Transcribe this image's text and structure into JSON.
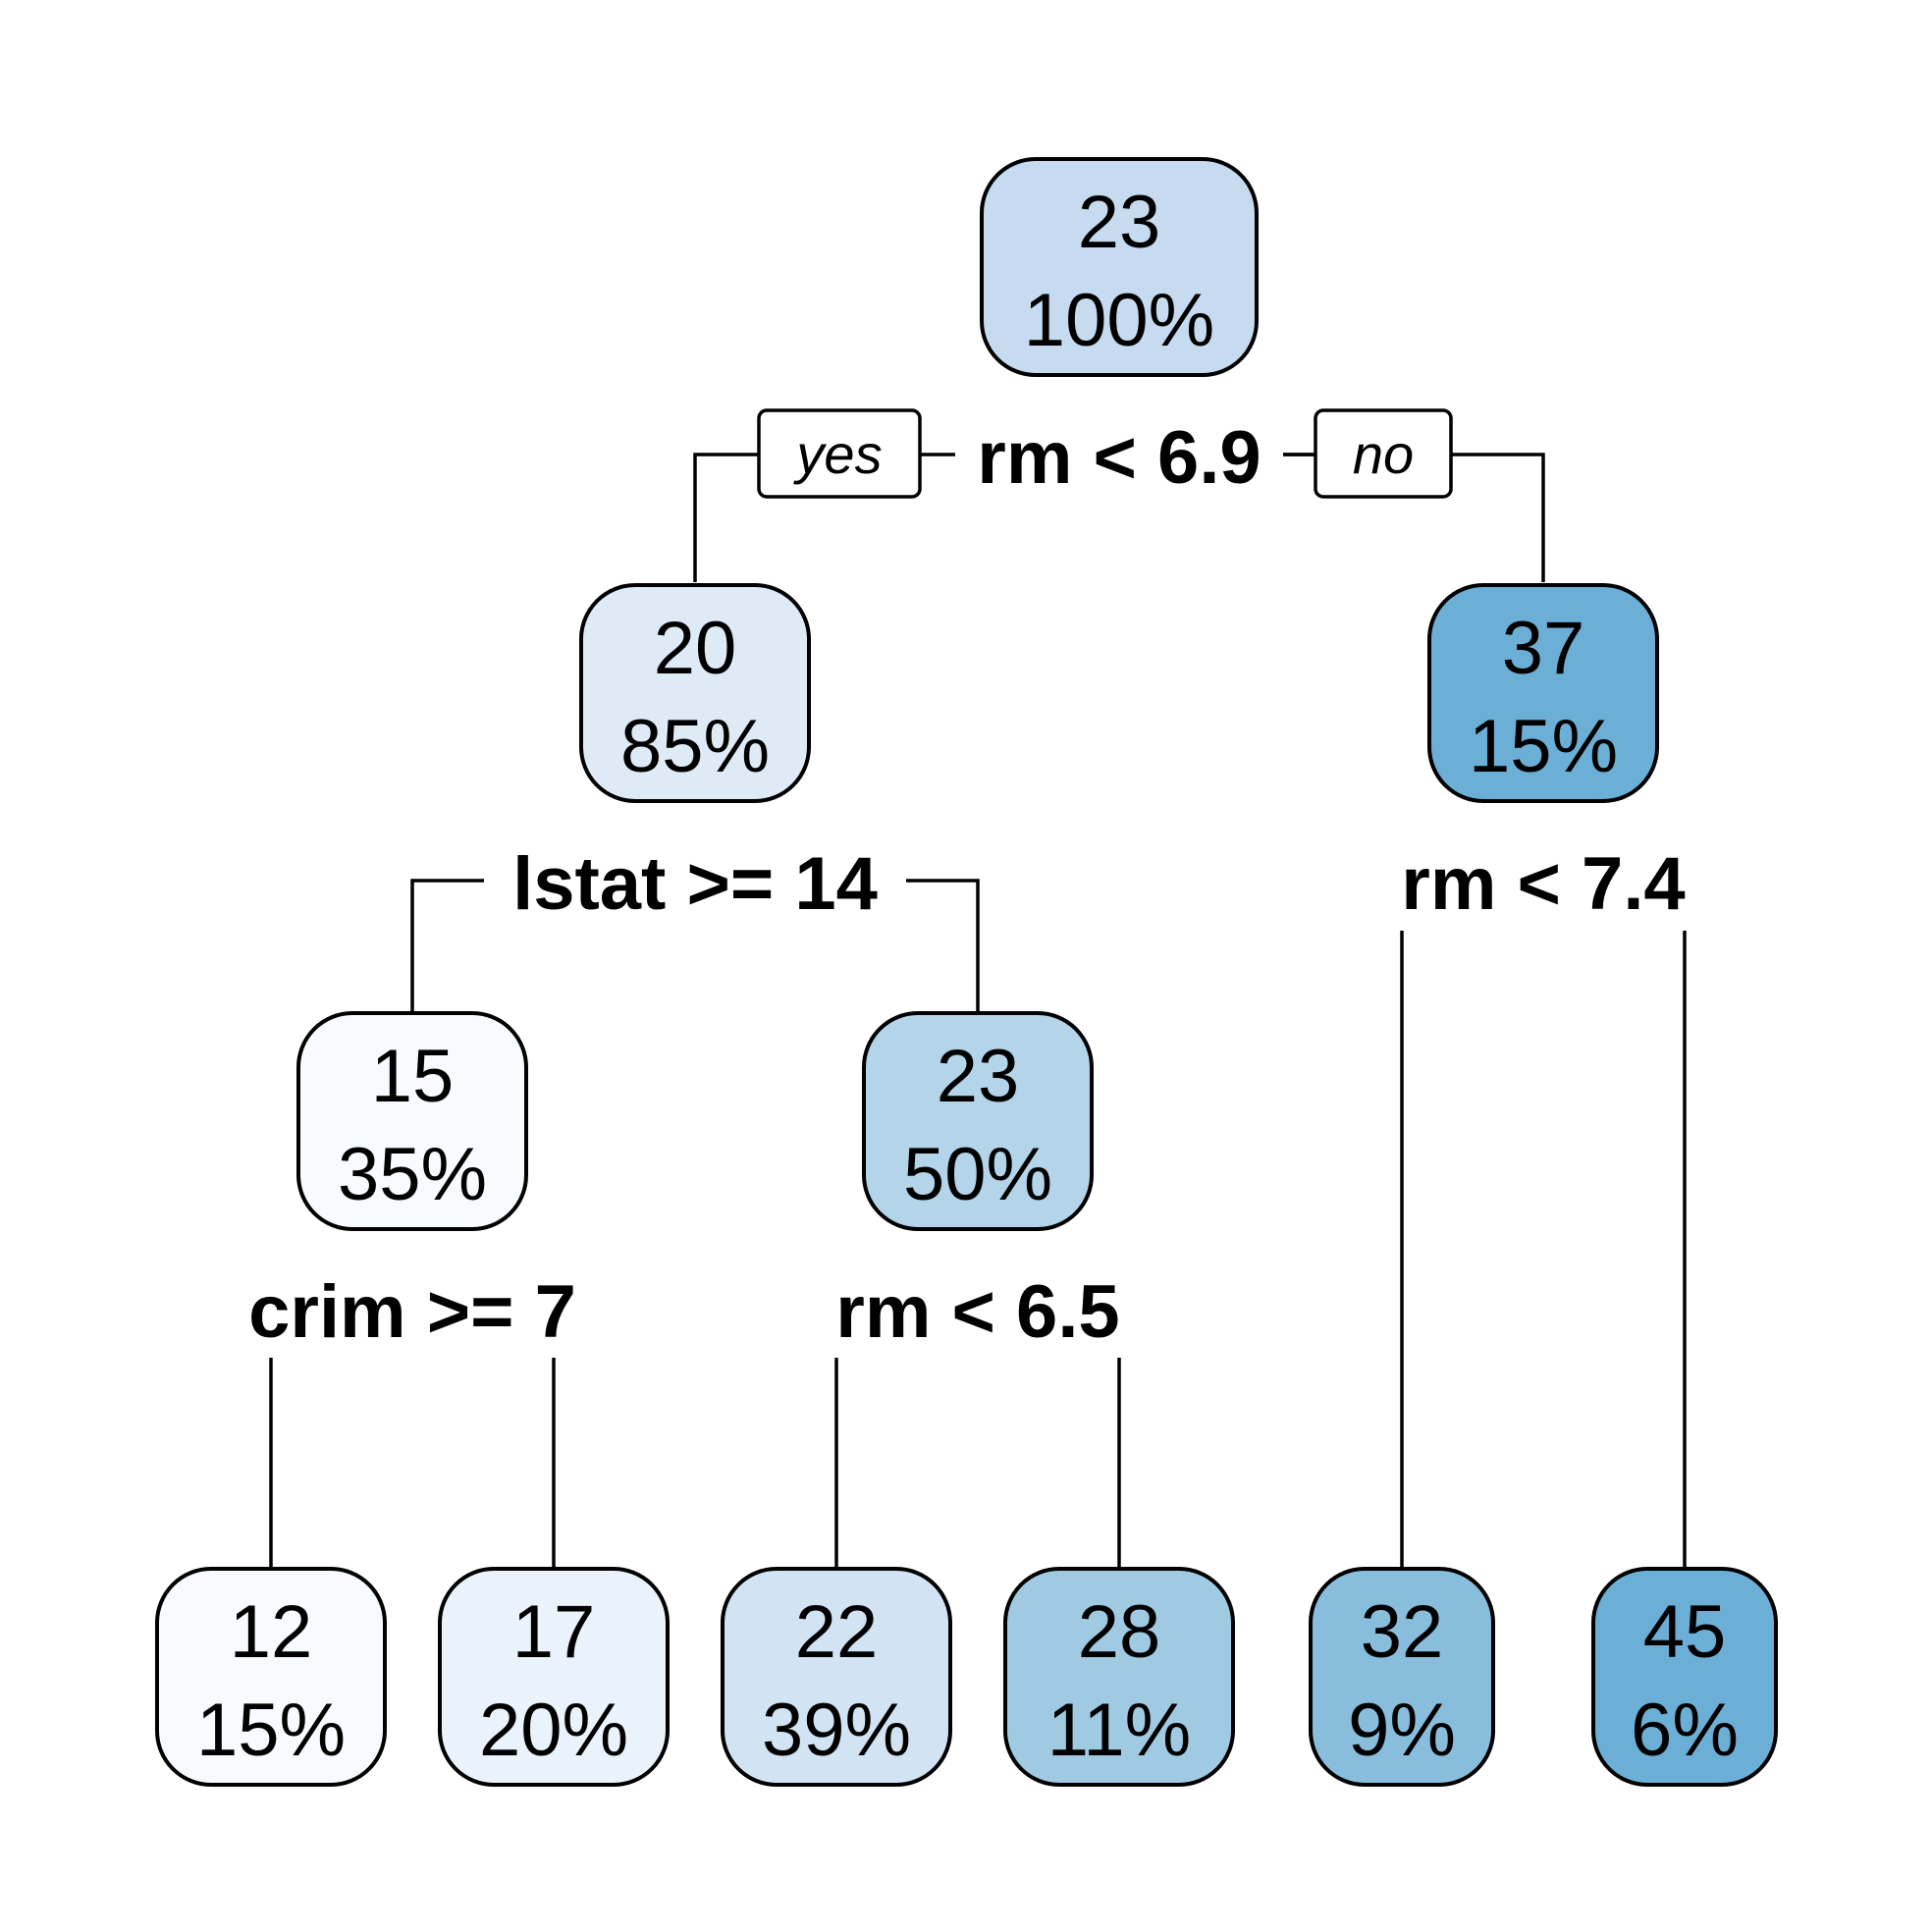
{
  "diagram": {
    "type": "regression-tree",
    "root_branch_labels": {
      "yes": "yes",
      "no": "no"
    },
    "nodes": [
      {
        "id": "n1",
        "value": "23",
        "percent": "100%",
        "color": "#c6dbef"
      },
      {
        "id": "n2",
        "value": "20",
        "percent": "85%",
        "color": "#deebf7"
      },
      {
        "id": "n3",
        "value": "37",
        "percent": "15%",
        "color": "#6baed6"
      },
      {
        "id": "n4",
        "value": "15",
        "percent": "35%",
        "color": "#f7fbff"
      },
      {
        "id": "n5",
        "value": "23",
        "percent": "50%",
        "color": "#b4d4e9"
      },
      {
        "id": "n8",
        "value": "12",
        "percent": "15%",
        "color": "#f7fbff"
      },
      {
        "id": "n9",
        "value": "17",
        "percent": "20%",
        "color": "#eaf2fb"
      },
      {
        "id": "n10",
        "value": "22",
        "percent": "39%",
        "color": "#d2e4f3"
      },
      {
        "id": "n11",
        "value": "28",
        "percent": "11%",
        "color": "#9fcae1"
      },
      {
        "id": "n6",
        "value": "32",
        "percent": "9%",
        "color": "#88bedc"
      },
      {
        "id": "n7",
        "value": "45",
        "percent": "6%",
        "color": "#6baed6"
      }
    ],
    "splits": [
      {
        "id": "s1",
        "node": "n1",
        "label": "rm < 6.9"
      },
      {
        "id": "s2",
        "node": "n2",
        "label": "lstat >= 14"
      },
      {
        "id": "s3",
        "node": "n3",
        "label": "rm < 7.4"
      },
      {
        "id": "s4",
        "node": "n4",
        "label": "crim >= 7"
      },
      {
        "id": "s5",
        "node": "n5",
        "label": "rm < 6.5"
      }
    ]
  }
}
